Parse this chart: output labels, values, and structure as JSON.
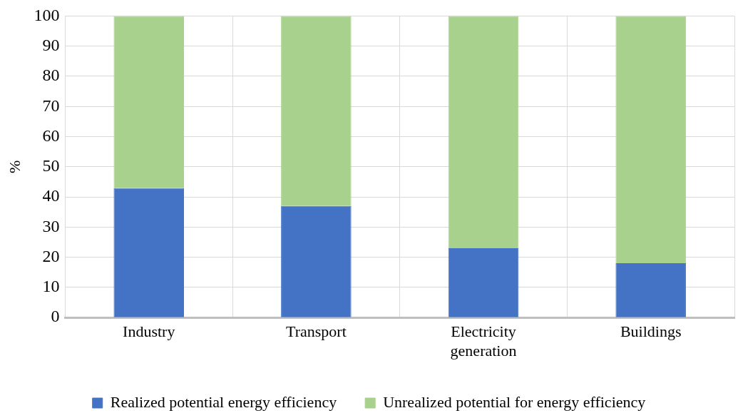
{
  "chart_data": {
    "type": "bar",
    "ylabel": "%",
    "categories": [
      "Industry",
      "Transport",
      "Electricity generation",
      "Buildings"
    ],
    "series": [
      {
        "name": "Realized potential energy efficiency",
        "color": "#4472c4",
        "values": [
          43,
          37,
          23,
          18
        ]
      },
      {
        "name": "Unrealized potential for energy efficiency",
        "color": "#a9d18e",
        "values": [
          57,
          63,
          77,
          82
        ]
      }
    ],
    "stacked": true,
    "ylim": [
      0,
      100
    ],
    "yticks": [
      0,
      10,
      20,
      30,
      40,
      50,
      60,
      70,
      80,
      90,
      100
    ],
    "grid": true,
    "legend": "bottom"
  }
}
